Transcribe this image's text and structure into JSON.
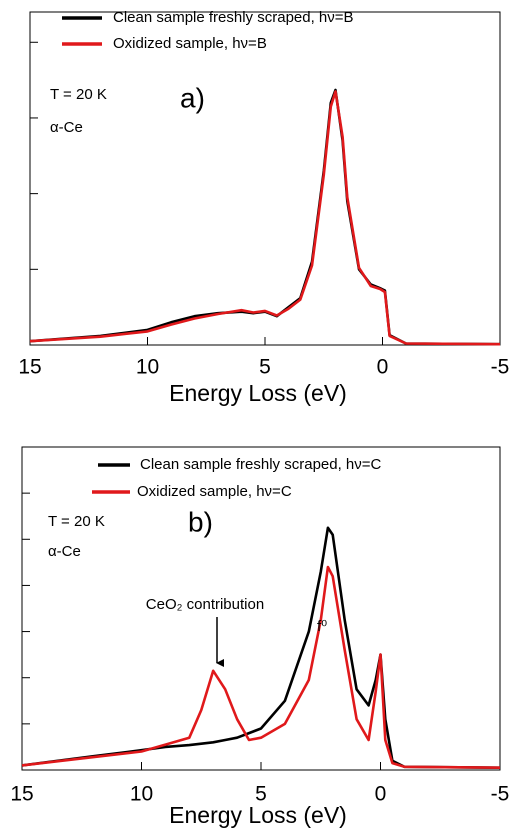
{
  "chart_data": [
    {
      "type": "line",
      "label": "a)",
      "annotations": [
        "T  = 20 K",
        "α-Ce"
      ],
      "xlabel": "Energy Loss (eV)",
      "xlim": [
        15,
        -5
      ],
      "xticks": [
        15,
        10,
        5,
        0,
        -5
      ],
      "ylim": [
        0,
        4.4
      ],
      "yticks": [
        1,
        2,
        3,
        4
      ],
      "x": [
        15,
        12,
        10,
        9,
        8,
        7,
        6,
        5.5,
        5,
        4.5,
        4,
        3.5,
        3,
        2.5,
        2.2,
        2,
        1.7,
        1.5,
        1,
        0.5,
        0.1,
        -0.1,
        -0.3,
        -1,
        -5
      ],
      "series": [
        {
          "name": "Clean sample freshly scraped, hν=B",
          "color": "#000000",
          "values": [
            0.05,
            0.12,
            0.2,
            0.3,
            0.38,
            0.42,
            0.44,
            0.42,
            0.44,
            0.38,
            0.5,
            0.62,
            1.1,
            2.3,
            3.2,
            3.37,
            2.7,
            1.9,
            1.0,
            0.8,
            0.75,
            0.72,
            0.13,
            0.02,
            0.01
          ]
        },
        {
          "name": "Oxidized sample, hν=B",
          "color": "#e0191b",
          "values": [
            0.05,
            0.11,
            0.18,
            0.27,
            0.35,
            0.41,
            0.46,
            0.43,
            0.45,
            0.39,
            0.48,
            0.6,
            1.05,
            2.25,
            3.15,
            3.35,
            2.75,
            1.95,
            1.02,
            0.78,
            0.74,
            0.7,
            0.12,
            0.02,
            0.01
          ]
        }
      ]
    },
    {
      "type": "line",
      "label": "b)",
      "annotations": [
        "T  = 20 K",
        "α-Ce",
        "CeO₂ contribution",
        "f⁰"
      ],
      "xlabel": "Energy Loss (eV)",
      "xlim": [
        15,
        -5
      ],
      "xticks": [
        15,
        10,
        5,
        0,
        -5
      ],
      "ylim": [
        0,
        7
      ],
      "yticks": [
        1,
        2,
        3,
        4,
        5,
        6
      ],
      "x": [
        15,
        12,
        10,
        9,
        8,
        7.5,
        7,
        6.5,
        6,
        5.5,
        5,
        4,
        3,
        2.5,
        2.2,
        2,
        1.5,
        1,
        0.5,
        0.2,
        0,
        -0.2,
        -0.5,
        -1,
        -5
      ],
      "series": [
        {
          "name": "Clean sample freshly scraped, hν=C",
          "color": "#000000",
          "values": [
            0.1,
            0.3,
            0.43,
            0.5,
            0.54,
            0.57,
            0.6,
            0.65,
            0.7,
            0.8,
            0.9,
            1.5,
            3.0,
            4.3,
            5.25,
            5.1,
            3.25,
            1.75,
            1.4,
            1.95,
            2.5,
            1.1,
            0.2,
            0.07,
            0.05
          ]
        },
        {
          "name": "Oxidized sample, hν=C",
          "color": "#e0191b",
          "values": [
            0.1,
            0.28,
            0.4,
            0.55,
            0.7,
            1.3,
            2.15,
            1.75,
            1.1,
            0.65,
            0.7,
            1.0,
            1.95,
            3.25,
            4.4,
            4.2,
            2.6,
            1.1,
            0.65,
            1.7,
            2.5,
            0.65,
            0.15,
            0.07,
            0.05
          ]
        }
      ]
    }
  ]
}
